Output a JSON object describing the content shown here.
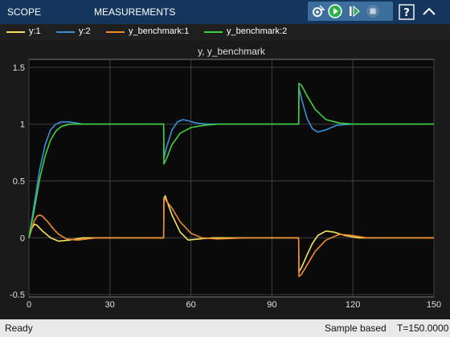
{
  "toolbar": {
    "tabs": [
      {
        "label": "SCOPE"
      },
      {
        "label": "MEASUREMENTS"
      }
    ],
    "icons": [
      "settings-icon",
      "run-icon",
      "step-forward-icon",
      "stop-icon",
      "help-icon",
      "expand-icon"
    ]
  },
  "legend": [
    {
      "label": "y:1",
      "color": "#f5e35a"
    },
    {
      "label": "y:2",
      "color": "#3a8fd9"
    },
    {
      "label": "y_benchmark:1",
      "color": "#f08c2e"
    },
    {
      "label": "y_benchmark:2",
      "color": "#3fd13c"
    }
  ],
  "status": {
    "ready": "Ready",
    "mode": "Sample based",
    "time": "T=150.0000"
  },
  "chart_data": {
    "type": "line",
    "title": "y, y_benchmark",
    "xlabel": "",
    "ylabel": "",
    "xlim": [
      0,
      150
    ],
    "ylim": [
      -0.52,
      1.57
    ],
    "xticks": [
      0,
      30,
      60,
      90,
      120,
      150
    ],
    "yticks": [
      -0.5,
      0,
      0.5,
      1,
      1.5
    ],
    "grid": true,
    "background": "#0a0a0a",
    "series": [
      {
        "name": "y:1",
        "color": "#f5e35a",
        "x": [
          0,
          1,
          2,
          3,
          5,
          8,
          11,
          15,
          20,
          30,
          49.9,
          50,
          50.5,
          51,
          53,
          56,
          59,
          63,
          68,
          75,
          99.9,
          100,
          101,
          103,
          105,
          107,
          110,
          113,
          117,
          122,
          130,
          150
        ],
        "y": [
          0,
          0.08,
          0.12,
          0.11,
          0.06,
          0.0,
          -0.03,
          -0.02,
          0.0,
          0.0,
          0.0,
          0.35,
          0.37,
          0.33,
          0.2,
          0.05,
          -0.02,
          -0.01,
          0.0,
          0.0,
          0.0,
          -0.3,
          -0.26,
          -0.15,
          -0.05,
          0.02,
          0.06,
          0.05,
          0.02,
          0.0,
          0.0,
          0.0
        ]
      },
      {
        "name": "y:2",
        "color": "#3a8fd9",
        "x": [
          0,
          2,
          4,
          6,
          8,
          10,
          12,
          15,
          20,
          25,
          30,
          49.9,
          50,
          51,
          53,
          55,
          57,
          59,
          62,
          66,
          70,
          99.9,
          100,
          101,
          103,
          105,
          107,
          110,
          114,
          120,
          130,
          150
        ],
        "y": [
          0,
          0.3,
          0.6,
          0.82,
          0.95,
          1.0,
          1.02,
          1.02,
          1.0,
          1.0,
          1.0,
          1.0,
          0.7,
          0.8,
          0.95,
          1.02,
          1.04,
          1.03,
          1.01,
          1.0,
          1.0,
          1.0,
          1.32,
          1.22,
          1.05,
          0.96,
          0.93,
          0.95,
          0.99,
          1.0,
          1.0,
          1.0
        ]
      },
      {
        "name": "y_benchmark:1",
        "color": "#f08c2e",
        "x": [
          0,
          1,
          2,
          3,
          4,
          5,
          7,
          9,
          11,
          14,
          18,
          25,
          35,
          49.9,
          50,
          50.5,
          51,
          53,
          56,
          60,
          64,
          70,
          80,
          99.9,
          100,
          101,
          103,
          106,
          110,
          115,
          120,
          125,
          130,
          150
        ],
        "y": [
          0,
          0.08,
          0.15,
          0.19,
          0.2,
          0.19,
          0.14,
          0.08,
          0.03,
          -0.01,
          -0.02,
          0.0,
          0.0,
          0.0,
          0.35,
          0.34,
          0.32,
          0.26,
          0.14,
          0.04,
          0.0,
          -0.01,
          0.0,
          0.0,
          -0.34,
          -0.32,
          -0.24,
          -0.12,
          -0.02,
          0.03,
          0.02,
          0.0,
          0.0,
          0.0
        ]
      },
      {
        "name": "y_benchmark:2",
        "color": "#3fd13c",
        "x": [
          0,
          2,
          4,
          6,
          8,
          10,
          12,
          15,
          20,
          25,
          30,
          49.9,
          50,
          51,
          53,
          56,
          60,
          65,
          70,
          80,
          99.9,
          100,
          101,
          103,
          106,
          110,
          115,
          120,
          125,
          130,
          150
        ],
        "y": [
          0,
          0.25,
          0.52,
          0.72,
          0.86,
          0.94,
          0.98,
          1.0,
          1.0,
          1.0,
          1.0,
          1.0,
          0.65,
          0.7,
          0.82,
          0.92,
          0.97,
          0.99,
          1.0,
          1.0,
          1.0,
          1.36,
          1.34,
          1.25,
          1.13,
          1.04,
          1.01,
          1.0,
          1.0,
          1.0,
          1.0
        ]
      }
    ]
  }
}
